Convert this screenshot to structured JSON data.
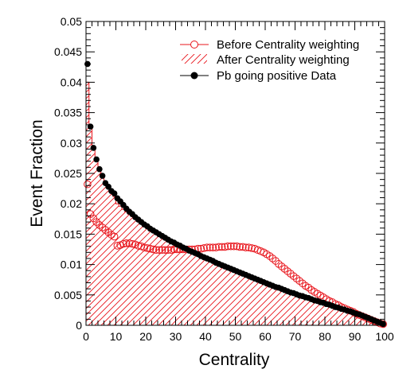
{
  "chart_data": {
    "type": "scatter",
    "title": "",
    "xlabel": "Centrality",
    "ylabel": "Event Fraction",
    "xlim": [
      0,
      100
    ],
    "ylim": [
      0,
      0.05
    ],
    "x_ticks": [
      "0",
      "10",
      "20",
      "30",
      "40",
      "50",
      "60",
      "70",
      "80",
      "90",
      "100"
    ],
    "y_ticks": [
      "0",
      "0.005",
      "0.01",
      "0.015",
      "0.02",
      "0.025",
      "0.03",
      "0.035",
      "0.04",
      "0.045",
      "0.05"
    ],
    "grid": false,
    "legend_position": "top-right",
    "series": [
      {
        "name": "Before Centrality weighting",
        "style": "open-circle",
        "color": "#e8141b",
        "points": [
          [
            0.5,
            0.0232
          ],
          [
            1.5,
            0.0183
          ],
          [
            2.5,
            0.0176
          ],
          [
            3.5,
            0.017
          ],
          [
            4.5,
            0.0165
          ],
          [
            5.5,
            0.0161
          ],
          [
            6.5,
            0.0157
          ],
          [
            7.5,
            0.0153
          ],
          [
            8.5,
            0.0149
          ],
          [
            9.5,
            0.0146
          ],
          [
            10.5,
            0.0131
          ],
          [
            11.5,
            0.0132
          ],
          [
            12.5,
            0.0134
          ],
          [
            13.5,
            0.0135
          ],
          [
            14.5,
            0.0135
          ],
          [
            15.5,
            0.0134
          ],
          [
            16.5,
            0.0133
          ],
          [
            17.5,
            0.0131
          ],
          [
            18.5,
            0.013
          ],
          [
            19.5,
            0.0128
          ],
          [
            20.5,
            0.0127
          ],
          [
            21.5,
            0.0126
          ],
          [
            22.5,
            0.0125
          ],
          [
            23.5,
            0.0124
          ],
          [
            24.5,
            0.0124
          ],
          [
            25.5,
            0.0124
          ],
          [
            26.5,
            0.0124
          ],
          [
            27.5,
            0.0124
          ],
          [
            28.5,
            0.0124
          ],
          [
            29.5,
            0.0125
          ],
          [
            30.5,
            0.0125
          ],
          [
            31.5,
            0.0125
          ],
          [
            32.5,
            0.0125
          ],
          [
            33.5,
            0.0125
          ],
          [
            34.5,
            0.0125
          ],
          [
            35.5,
            0.0125
          ],
          [
            36.5,
            0.0125
          ],
          [
            37.5,
            0.0126
          ],
          [
            38.5,
            0.0126
          ],
          [
            39.5,
            0.0127
          ],
          [
            40.5,
            0.0128
          ],
          [
            41.5,
            0.0128
          ],
          [
            42.5,
            0.0128
          ],
          [
            43.5,
            0.0128
          ],
          [
            44.5,
            0.0129
          ],
          [
            45.5,
            0.0129
          ],
          [
            46.5,
            0.0129
          ],
          [
            47.5,
            0.013
          ],
          [
            48.5,
            0.013
          ],
          [
            49.5,
            0.013
          ],
          [
            50.5,
            0.013
          ],
          [
            51.5,
            0.0129
          ],
          [
            52.5,
            0.0129
          ],
          [
            53.5,
            0.0128
          ],
          [
            54.5,
            0.0128
          ],
          [
            55.5,
            0.0127
          ],
          [
            56.5,
            0.0126
          ],
          [
            57.5,
            0.0124
          ],
          [
            58.5,
            0.0122
          ],
          [
            59.5,
            0.012
          ],
          [
            60.5,
            0.0117
          ],
          [
            61.5,
            0.0114
          ],
          [
            62.5,
            0.011
          ],
          [
            63.5,
            0.0106
          ],
          [
            64.5,
            0.0101
          ],
          [
            65.5,
            0.0097
          ],
          [
            66.5,
            0.0093
          ],
          [
            67.5,
            0.0089
          ],
          [
            68.5,
            0.0085
          ],
          [
            69.5,
            0.0081
          ],
          [
            70.5,
            0.0077
          ],
          [
            71.5,
            0.0073
          ],
          [
            72.5,
            0.0069
          ],
          [
            73.5,
            0.0065
          ],
          [
            74.5,
            0.0062
          ],
          [
            75.5,
            0.0058
          ],
          [
            76.5,
            0.0055
          ],
          [
            77.5,
            0.0052
          ],
          [
            78.5,
            0.0049
          ],
          [
            79.5,
            0.0046
          ],
          [
            80.5,
            0.0043
          ],
          [
            81.5,
            0.004
          ],
          [
            82.5,
            0.0038
          ],
          [
            83.5,
            0.0035
          ],
          [
            84.5,
            0.0033
          ],
          [
            85.5,
            0.003
          ],
          [
            86.5,
            0.0028
          ],
          [
            87.5,
            0.0026
          ],
          [
            88.5,
            0.0024
          ],
          [
            89.5,
            0.0022
          ],
          [
            90.5,
            0.0019
          ],
          [
            91.5,
            0.0017
          ],
          [
            92.5,
            0.0015
          ],
          [
            93.5,
            0.0013
          ],
          [
            94.5,
            0.0011
          ],
          [
            95.5,
            0.0009
          ],
          [
            96.5,
            0.0007
          ],
          [
            97.5,
            0.0005
          ],
          [
            98.5,
            0.0003
          ],
          [
            99.5,
            0.0002
          ]
        ]
      },
      {
        "name": "After Centrality weighting",
        "style": "hatched-histogram",
        "color": "#e8141b",
        "points": [
          [
            0.5,
            0.04
          ],
          [
            1.5,
            0.0327
          ],
          [
            2.5,
            0.0295
          ],
          [
            3.5,
            0.0275
          ],
          [
            4.5,
            0.0257
          ],
          [
            5.5,
            0.0244
          ],
          [
            6.5,
            0.0234
          ],
          [
            7.5,
            0.0225
          ],
          [
            8.5,
            0.0218
          ],
          [
            9.5,
            0.0212
          ],
          [
            10.5,
            0.02
          ],
          [
            11.5,
            0.0196
          ],
          [
            12.5,
            0.0191
          ],
          [
            13.5,
            0.0187
          ],
          [
            14.5,
            0.0183
          ],
          [
            15.5,
            0.0179
          ],
          [
            16.5,
            0.0175
          ],
          [
            17.5,
            0.0171
          ],
          [
            18.5,
            0.0167
          ],
          [
            19.5,
            0.0164
          ],
          [
            20.5,
            0.0161
          ],
          [
            21.5,
            0.0158
          ],
          [
            22.5,
            0.0155
          ],
          [
            23.5,
            0.0152
          ],
          [
            24.5,
            0.0149
          ],
          [
            25.5,
            0.0146
          ],
          [
            26.5,
            0.0143
          ],
          [
            27.5,
            0.0141
          ],
          [
            28.5,
            0.0138
          ],
          [
            29.5,
            0.0135
          ],
          [
            30.5,
            0.0133
          ],
          [
            31.5,
            0.0131
          ],
          [
            32.5,
            0.0128
          ],
          [
            33.5,
            0.0126
          ],
          [
            34.5,
            0.0123
          ],
          [
            35.5,
            0.0121
          ],
          [
            36.5,
            0.0119
          ],
          [
            37.5,
            0.0116
          ],
          [
            38.5,
            0.0114
          ],
          [
            39.5,
            0.0112
          ],
          [
            40.5,
            0.011
          ],
          [
            41.5,
            0.0107
          ],
          [
            42.5,
            0.0105
          ],
          [
            43.5,
            0.0103
          ],
          [
            44.5,
            0.0101
          ],
          [
            45.5,
            0.0099
          ],
          [
            46.5,
            0.0097
          ],
          [
            47.5,
            0.0095
          ],
          [
            48.5,
            0.0093
          ],
          [
            49.5,
            0.0091
          ],
          [
            50.5,
            0.0089
          ],
          [
            51.5,
            0.0087
          ],
          [
            52.5,
            0.0085
          ],
          [
            53.5,
            0.0083
          ],
          [
            54.5,
            0.0081
          ],
          [
            55.5,
            0.0079
          ],
          [
            56.5,
            0.0077
          ],
          [
            57.5,
            0.0075
          ],
          [
            58.5,
            0.0073
          ],
          [
            59.5,
            0.0071
          ],
          [
            60.5,
            0.0069
          ],
          [
            61.5,
            0.0067
          ],
          [
            62.5,
            0.0065
          ],
          [
            63.5,
            0.0063
          ],
          [
            64.5,
            0.0061
          ],
          [
            65.5,
            0.006
          ],
          [
            66.5,
            0.0058
          ],
          [
            67.5,
            0.0056
          ],
          [
            68.5,
            0.0054
          ],
          [
            69.5,
            0.0053
          ],
          [
            70.5,
            0.0051
          ],
          [
            71.5,
            0.0049
          ],
          [
            72.5,
            0.0048
          ],
          [
            73.5,
            0.0046
          ],
          [
            74.5,
            0.0044
          ],
          [
            75.5,
            0.0043
          ],
          [
            76.5,
            0.0041
          ],
          [
            77.5,
            0.004
          ],
          [
            78.5,
            0.0038
          ],
          [
            79.5,
            0.0037
          ],
          [
            80.5,
            0.0035
          ],
          [
            81.5,
            0.0033
          ],
          [
            82.5,
            0.0032
          ],
          [
            83.5,
            0.003
          ],
          [
            84.5,
            0.0029
          ],
          [
            85.5,
            0.0027
          ],
          [
            86.5,
            0.0026
          ],
          [
            87.5,
            0.0024
          ],
          [
            88.5,
            0.0023
          ],
          [
            89.5,
            0.0021
          ],
          [
            90.5,
            0.0019
          ],
          [
            91.5,
            0.0017
          ],
          [
            92.5,
            0.0016
          ],
          [
            93.5,
            0.0014
          ],
          [
            94.5,
            0.0012
          ],
          [
            95.5,
            0.001
          ],
          [
            96.5,
            0.0008
          ],
          [
            97.5,
            0.0006
          ],
          [
            98.5,
            0.0004
          ],
          [
            99.5,
            0.0002
          ]
        ]
      },
      {
        "name": "Pb going positive Data",
        "style": "filled-circle",
        "color": "#000000",
        "points": [
          [
            0.5,
            0.043
          ],
          [
            1.5,
            0.0327
          ],
          [
            2.5,
            0.0292
          ],
          [
            3.5,
            0.0273
          ],
          [
            4.5,
            0.0257
          ],
          [
            5.5,
            0.0246
          ],
          [
            6.5,
            0.0234
          ],
          [
            7.5,
            0.0228
          ],
          [
            8.5,
            0.0221
          ],
          [
            9.5,
            0.0217
          ],
          [
            10.5,
            0.0209
          ],
          [
            11.5,
            0.0204
          ],
          [
            12.5,
            0.0198
          ],
          [
            13.5,
            0.0192
          ],
          [
            14.5,
            0.0187
          ],
          [
            15.5,
            0.0183
          ],
          [
            16.5,
            0.0178
          ],
          [
            17.5,
            0.0174
          ],
          [
            18.5,
            0.017
          ],
          [
            19.5,
            0.0166
          ],
          [
            20.5,
            0.0163
          ],
          [
            21.5,
            0.0159
          ],
          [
            22.5,
            0.0156
          ],
          [
            23.5,
            0.0153
          ],
          [
            24.5,
            0.015
          ],
          [
            25.5,
            0.0147
          ],
          [
            26.5,
            0.0144
          ],
          [
            27.5,
            0.0141
          ],
          [
            28.5,
            0.0138
          ],
          [
            29.5,
            0.0136
          ],
          [
            30.5,
            0.0133
          ],
          [
            31.5,
            0.0131
          ],
          [
            32.5,
            0.0128
          ],
          [
            33.5,
            0.0126
          ],
          [
            34.5,
            0.0123
          ],
          [
            35.5,
            0.0121
          ],
          [
            36.5,
            0.0119
          ],
          [
            37.5,
            0.0117
          ],
          [
            38.5,
            0.0114
          ],
          [
            39.5,
            0.0112
          ],
          [
            40.5,
            0.011
          ],
          [
            41.5,
            0.0108
          ],
          [
            42.5,
            0.0106
          ],
          [
            43.5,
            0.0103
          ],
          [
            44.5,
            0.0101
          ],
          [
            45.5,
            0.0099
          ],
          [
            46.5,
            0.0097
          ],
          [
            47.5,
            0.0095
          ],
          [
            48.5,
            0.0093
          ],
          [
            49.5,
            0.0091
          ],
          [
            50.5,
            0.0089
          ],
          [
            51.5,
            0.0087
          ],
          [
            52.5,
            0.0085
          ],
          [
            53.5,
            0.0083
          ],
          [
            54.5,
            0.0081
          ],
          [
            55.5,
            0.0079
          ],
          [
            56.5,
            0.0077
          ],
          [
            57.5,
            0.0075
          ],
          [
            58.5,
            0.0073
          ],
          [
            59.5,
            0.0071
          ],
          [
            60.5,
            0.0069
          ],
          [
            61.5,
            0.0067
          ],
          [
            62.5,
            0.0065
          ],
          [
            63.5,
            0.0063
          ],
          [
            64.5,
            0.0062
          ],
          [
            65.5,
            0.006
          ],
          [
            66.5,
            0.0058
          ],
          [
            67.5,
            0.0056
          ],
          [
            68.5,
            0.0054
          ],
          [
            69.5,
            0.0053
          ],
          [
            70.5,
            0.0051
          ],
          [
            71.5,
            0.0049
          ],
          [
            72.5,
            0.0048
          ],
          [
            73.5,
            0.0046
          ],
          [
            74.5,
            0.0045
          ],
          [
            75.5,
            0.0043
          ],
          [
            76.5,
            0.0041
          ],
          [
            77.5,
            0.004
          ],
          [
            78.5,
            0.0038
          ],
          [
            79.5,
            0.0037
          ],
          [
            80.5,
            0.0035
          ],
          [
            81.5,
            0.0034
          ],
          [
            82.5,
            0.0032
          ],
          [
            83.5,
            0.003
          ],
          [
            84.5,
            0.0029
          ],
          [
            85.5,
            0.0027
          ],
          [
            86.5,
            0.0026
          ],
          [
            87.5,
            0.0024
          ],
          [
            88.5,
            0.0023
          ],
          [
            89.5,
            0.0021
          ],
          [
            90.5,
            0.0019
          ],
          [
            91.5,
            0.0018
          ],
          [
            92.5,
            0.0016
          ],
          [
            93.5,
            0.0014
          ],
          [
            94.5,
            0.0012
          ],
          [
            95.5,
            0.001
          ],
          [
            96.5,
            0.0008
          ],
          [
            97.5,
            0.0006
          ],
          [
            98.5,
            0.0004
          ],
          [
            99.5,
            0.0002
          ]
        ]
      }
    ]
  }
}
